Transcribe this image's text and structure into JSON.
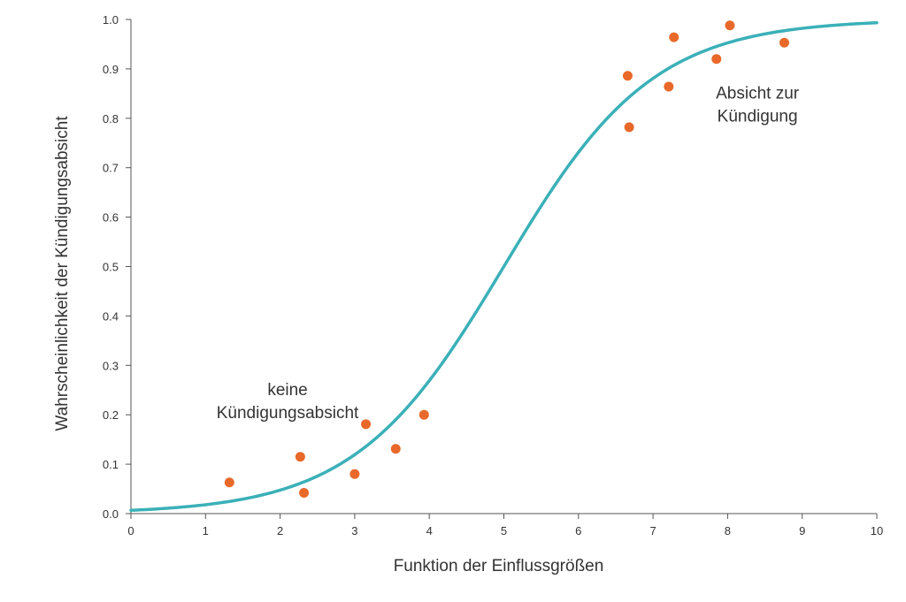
{
  "chart_data": {
    "type": "scatter",
    "title": "",
    "xlabel": "Funktion der Einflussgrößen",
    "ylabel": "Wahrscheinlichkeit der Kündigungsabsicht",
    "xlim": [
      0,
      10
    ],
    "ylim": [
      0,
      1
    ],
    "x_ticks": [
      "0",
      "1",
      "2",
      "3",
      "4",
      "5",
      "6",
      "7",
      "8",
      "9",
      "10"
    ],
    "y_ticks": [
      "0.0",
      "0.1",
      "0.2",
      "0.3",
      "0.4",
      "0.5",
      "0.6",
      "0.7",
      "0.8",
      "0.9",
      "1.0"
    ],
    "grid": false,
    "series": [
      {
        "type": "scatter",
        "points": [
          {
            "x": 1.32,
            "y": 0.063
          },
          {
            "x": 2.27,
            "y": 0.115
          },
          {
            "x": 2.32,
            "y": 0.042
          },
          {
            "x": 3.0,
            "y": 0.08
          },
          {
            "x": 3.15,
            "y": 0.181
          },
          {
            "x": 3.55,
            "y": 0.131
          },
          {
            "x": 3.93,
            "y": 0.2
          },
          {
            "x": 6.66,
            "y": 0.886
          },
          {
            "x": 6.68,
            "y": 0.782
          },
          {
            "x": 7.21,
            "y": 0.864
          },
          {
            "x": 7.28,
            "y": 0.964
          },
          {
            "x": 7.85,
            "y": 0.92
          },
          {
            "x": 8.03,
            "y": 0.988
          },
          {
            "x": 8.76,
            "y": 0.953
          }
        ]
      },
      {
        "type": "line",
        "curve": "logistic",
        "midpoint": 5.0,
        "steepness": 1.0
      }
    ],
    "annotations": [
      {
        "lines": [
          "keine",
          "Kündigungsabsicht"
        ],
        "x": 2.1,
        "y": 0.24
      },
      {
        "lines": [
          "Absicht zur",
          "Kündigung"
        ],
        "x": 8.4,
        "y": 0.84
      }
    ],
    "colors": {
      "points": "#e8692a",
      "curve": "#3bb0b8",
      "axis": "#555555",
      "text": "#333333"
    }
  }
}
